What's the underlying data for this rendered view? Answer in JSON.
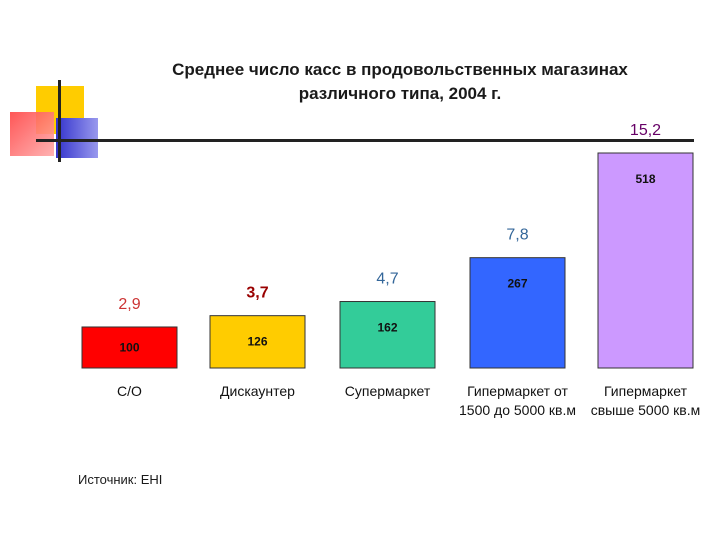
{
  "chart_data": {
    "type": "bar",
    "title_line1": "Среднее число касс в продовольственных магазинах",
    "title_line2": "различного типа, 2004 г.",
    "categories": [
      [
        "С/О"
      ],
      [
        "Дискаунтер"
      ],
      [
        "Супермаркет"
      ],
      [
        "Гипермаркет   от",
        "1500 до 5000 кв.м"
      ],
      [
        "Гипермаркет",
        "свыше 5000 кв.м"
      ]
    ],
    "values": [
      2.9,
      3.7,
      4.7,
      7.8,
      15.2
    ],
    "value_labels": [
      "2,9",
      "3,7",
      "4,7",
      "7,8",
      "15,2"
    ],
    "inner_labels": [
      "100",
      "126",
      "162",
      "267",
      "518"
    ],
    "colors": [
      "#ff0000",
      "#ffcc00",
      "#33cc99",
      "#3366ff",
      "#cc99ff"
    ],
    "label_colors": [
      "#cc3333",
      "#990000",
      "#336699",
      "#336699",
      "#660066"
    ],
    "ylim": [
      0,
      15.2
    ]
  },
  "source": "Источник: EHI",
  "colors": {
    "deco_yellow": "#ffcc00",
    "deco_red": "#ff3333",
    "deco_blue": "#3333cc"
  }
}
